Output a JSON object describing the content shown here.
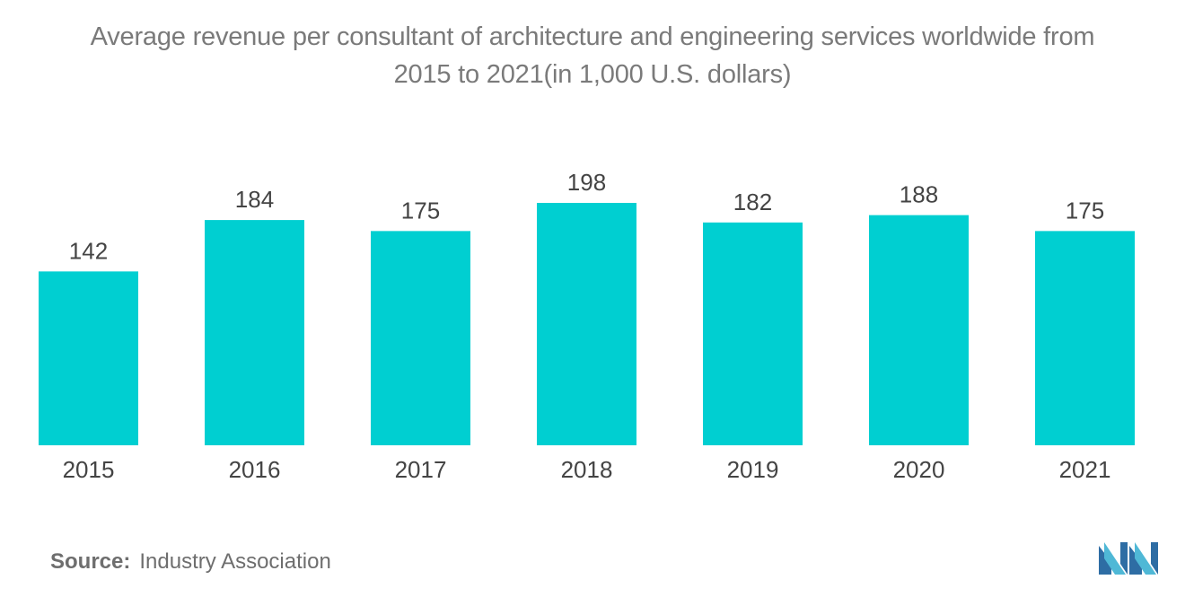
{
  "title_line1": "Average revenue per consultant of architecture and engineering services worldwide from",
  "title_line2": "2015 to 2021(in 1,000 U.S. dollars)",
  "source": {
    "label": "Source:",
    "value": "Industry Association"
  },
  "logo_icon": "mordor-intelligence-logo-icon",
  "colors": {
    "bar": "#00cfd1",
    "text": "#444444",
    "title": "#7a7a7a"
  },
  "chart_data": {
    "type": "bar",
    "title": "Average revenue per consultant of architecture and engineering services worldwide from 2015 to 2021(in 1,000 U.S. dollars)",
    "categories": [
      "2015",
      "2016",
      "2017",
      "2018",
      "2019",
      "2020",
      "2021"
    ],
    "values": [
      142,
      184,
      175,
      198,
      182,
      188,
      175
    ],
    "xlabel": "",
    "ylabel": "",
    "ylim": [
      0,
      198
    ],
    "grid": false,
    "legend": "none",
    "data_labels": true
  }
}
